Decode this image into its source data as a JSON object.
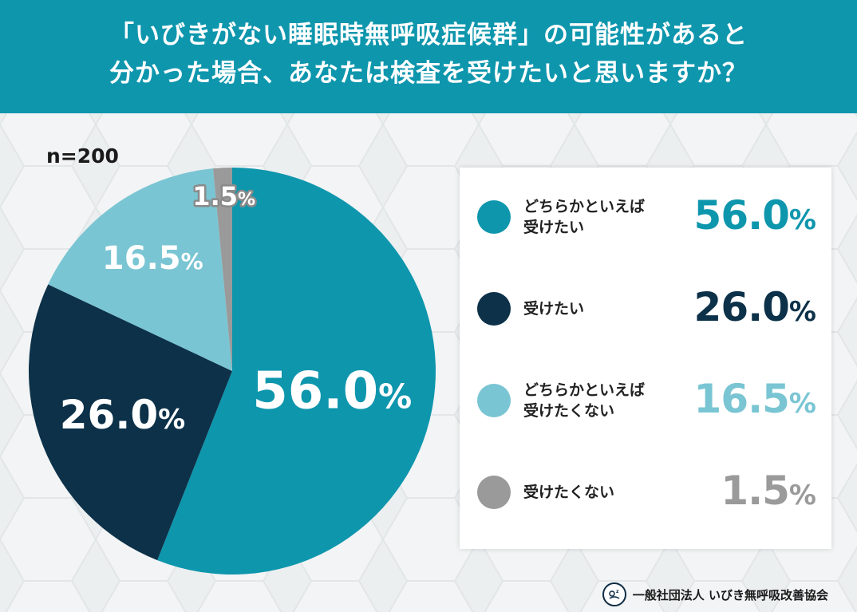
{
  "header": {
    "line1": "「いびきがない睡眠時無呼吸症候群」の可能性があると",
    "line2": "分かった場合、あなたは検査を受けたいと思いますか？"
  },
  "sample": "n=200",
  "footer": {
    "org": "一般社団法人 いびき無呼吸改善協会",
    "logo_icon": "sleeping-person-icon"
  },
  "colors": {
    "header_bg": "#0e96ad",
    "somewhat_want": "#0e96ad",
    "want": "#0c3149",
    "somewhat_not": "#7ac5d3",
    "not_want": "#9a9a9a"
  },
  "chart_data": {
    "type": "pie",
    "title": "「いびきがない睡眠時無呼吸症候群」の可能性があると分かった場合、あなたは検査を受けたいと思いますか？",
    "n": 200,
    "legend_position": "right",
    "slices": [
      {
        "label": "どちらかといえば受けたい",
        "label_lines": [
          "どちらかといえば",
          "受けたい"
        ],
        "value": 56.0,
        "value_text": "56.0",
        "color": "#0e96ad"
      },
      {
        "label": "受けたい",
        "label_lines": [
          "受けたい"
        ],
        "value": 26.0,
        "value_text": "26.0",
        "color": "#0c3149"
      },
      {
        "label": "どちらかといえば受けたくない",
        "label_lines": [
          "どちらかといえば",
          "受けたくない"
        ],
        "value": 16.5,
        "value_text": "16.5",
        "color": "#7ac5d3"
      },
      {
        "label": "受けたくない",
        "label_lines": [
          "受けたくない"
        ],
        "value": 1.5,
        "value_text": "1.5",
        "color": "#9a9a9a"
      }
    ],
    "unit": "%"
  }
}
